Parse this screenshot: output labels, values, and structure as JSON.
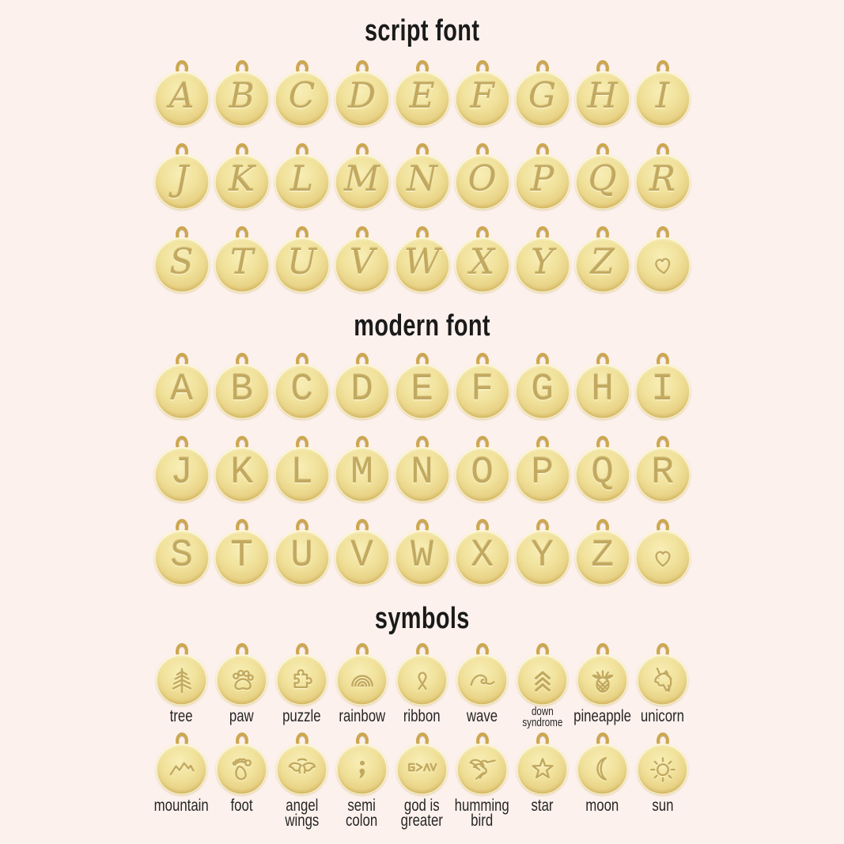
{
  "background_color": "#fcf1ed",
  "colors": {
    "disc_gold_light": "#f8eeb6",
    "disc_gold_mid": "#ecd88c",
    "disc_gold_edge": "#cda74b",
    "engraving_gold": "#c2a95f",
    "ring_gold": "#cda74f",
    "title_text": "#1a1a1a",
    "label_text": "#262626"
  },
  "sections": {
    "script": {
      "title": "script font",
      "rows": [
        [
          "A",
          "B",
          "C",
          "D",
          "E",
          "F",
          "G",
          "H",
          "I"
        ],
        [
          "J",
          "K",
          "L",
          "M",
          "N",
          "O",
          "P",
          "Q",
          "R"
        ],
        [
          "S",
          "T",
          "U",
          "V",
          "W",
          "X",
          "Y",
          "Z",
          "♡"
        ]
      ]
    },
    "modern": {
      "title": "modern font",
      "rows": [
        [
          "A",
          "B",
          "C",
          "D",
          "E",
          "F",
          "G",
          "H",
          "I"
        ],
        [
          "J",
          "K",
          "L",
          "M",
          "N",
          "O",
          "P",
          "Q",
          "R"
        ],
        [
          "S",
          "T",
          "U",
          "V",
          "W",
          "X",
          "Y",
          "Z",
          "♡"
        ]
      ]
    },
    "symbols": {
      "title": "symbols",
      "rows": [
        [
          {
            "icon": "tree",
            "label": "tree"
          },
          {
            "icon": "paw",
            "label": "paw"
          },
          {
            "icon": "puzzle",
            "label": "puzzle"
          },
          {
            "icon": "rainbow",
            "label": "rainbow"
          },
          {
            "icon": "ribbon",
            "label": "ribbon"
          },
          {
            "icon": "wave",
            "label": "wave"
          },
          {
            "icon": "down-syndrome",
            "label": "down\nsyndrome",
            "small": true
          },
          {
            "icon": "pineapple",
            "label": "pineapple"
          },
          {
            "icon": "unicorn",
            "label": "unicorn"
          }
        ],
        [
          {
            "icon": "mountain",
            "label": "mountain"
          },
          {
            "icon": "foot",
            "label": "foot"
          },
          {
            "icon": "angel-wings",
            "label": "angel\nwings"
          },
          {
            "icon": "semicolon",
            "label": "semi\ncolon"
          },
          {
            "icon": "god-is-greater",
            "label": "god is\ngreater"
          },
          {
            "icon": "hummingbird",
            "label": "humming\nbird"
          },
          {
            "icon": "star",
            "label": "star"
          },
          {
            "icon": "moon",
            "label": "moon"
          },
          {
            "icon": "sun",
            "label": "sun"
          }
        ]
      ]
    }
  }
}
